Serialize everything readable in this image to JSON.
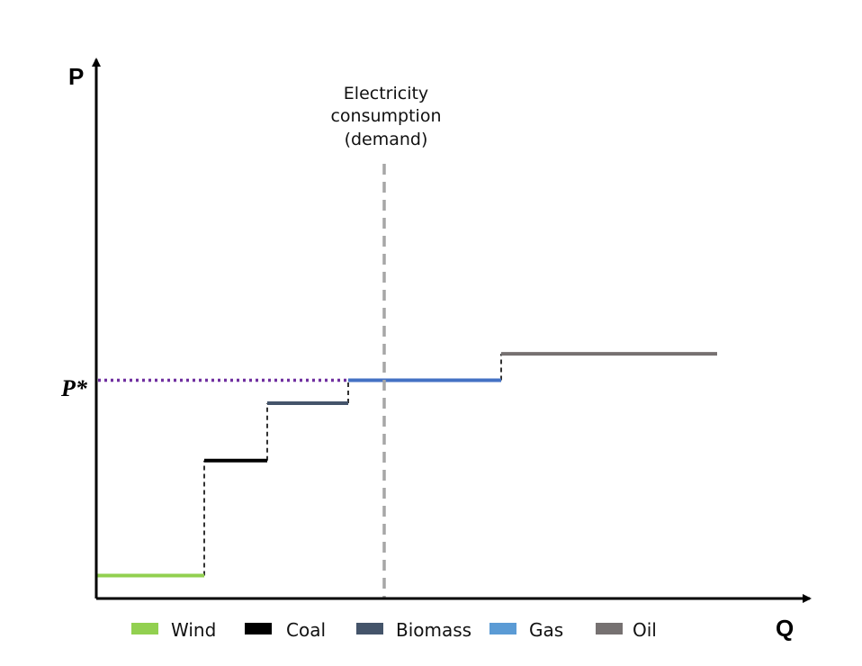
{
  "chart_data": {
    "type": "line",
    "title": "",
    "xlabel": "Q",
    "ylabel": "P",
    "grid": false,
    "legend_position": "bottom",
    "equilibrium_label": "P*",
    "demand_label_lines": [
      "Electricity",
      "consumption",
      "(demand)"
    ],
    "series": [
      {
        "name": "Wind",
        "color": "#92d050",
        "x": [
          0.0,
          12.0
        ],
        "y": [
          2.0,
          2.0
        ]
      },
      {
        "name": "Coal",
        "color": "#000000",
        "x": [
          12.0,
          19.0
        ],
        "y": [
          12.0,
          12.0
        ]
      },
      {
        "name": "Biomass",
        "color": "#44546a",
        "x": [
          19.0,
          28.0
        ],
        "y": [
          17.0,
          17.0
        ]
      },
      {
        "name": "Gas",
        "color": "#4472c4",
        "x": [
          28.0,
          45.0
        ],
        "y": [
          19.0,
          19.0
        ]
      },
      {
        "name": "Oil",
        "color": "#767171",
        "x": [
          45.0,
          69.0
        ],
        "y": [
          21.3,
          21.3
        ]
      }
    ],
    "legend": [
      {
        "name": "Wind",
        "color": "#92d050"
      },
      {
        "name": "Coal",
        "color": "#000000"
      },
      {
        "name": "Biomass",
        "color": "#44546a"
      },
      {
        "name": "Gas",
        "color": "#5b9bd5"
      },
      {
        "name": "Oil",
        "color": "#767171"
      }
    ],
    "demand_q": 32.0,
    "equilibrium_price": 19.0,
    "equilibrium_color": "#7030a0",
    "demand_color": "#a6a6a6",
    "xlim": [
      0,
      80
    ],
    "ylim": [
      0,
      47
    ]
  }
}
